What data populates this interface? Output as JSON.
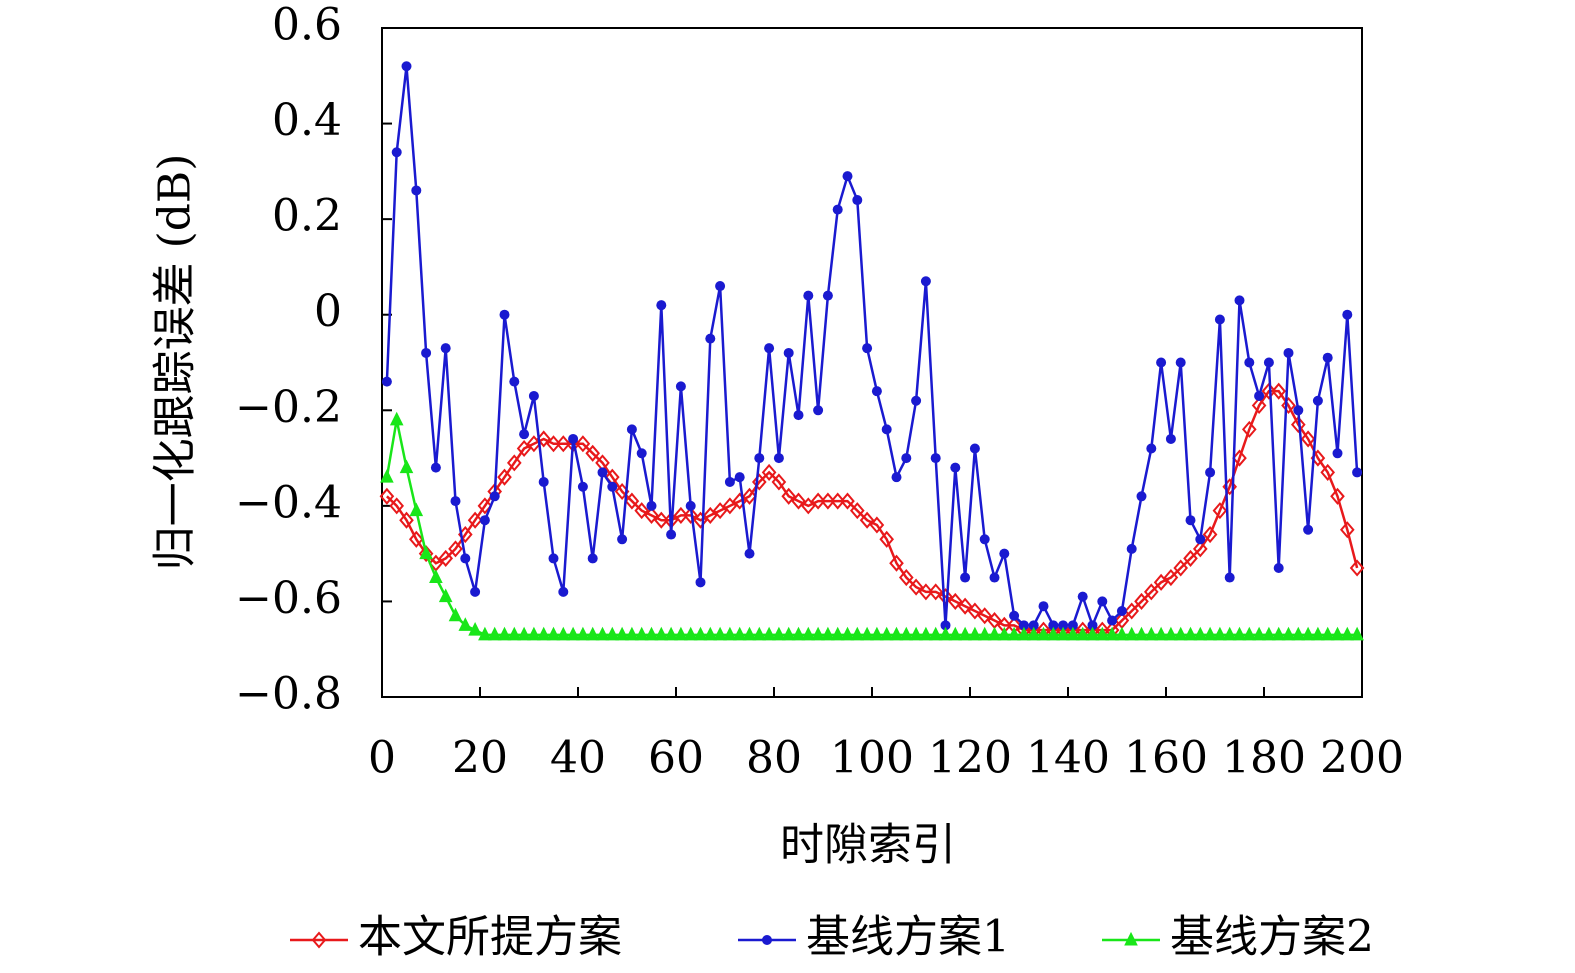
{
  "chart_data": {
    "type": "line",
    "xlabel": "时隙索引",
    "ylabel": "归一化跟踪误差 (dB)",
    "xlim": [
      0,
      200
    ],
    "xticks": [
      0,
      20,
      40,
      60,
      80,
      100,
      120,
      140,
      160,
      180,
      200
    ],
    "ylim": [
      -0.8,
      0.6
    ],
    "yticks": [
      {
        "value": -0.8,
        "label": "−0.8"
      },
      {
        "value": -0.6,
        "label": "−0.6"
      },
      {
        "value": -0.4,
        "label": "−0.4"
      },
      {
        "value": -0.2,
        "label": "−0.2"
      },
      0,
      0.2,
      0.4,
      0.6
    ],
    "legend": "bottom",
    "x": [
      1,
      3,
      5,
      7,
      9,
      11,
      13,
      15,
      17,
      19,
      21,
      23,
      25,
      27,
      29,
      31,
      33,
      35,
      37,
      39,
      41,
      43,
      45,
      47,
      49,
      51,
      53,
      55,
      57,
      59,
      61,
      63,
      65,
      67,
      69,
      71,
      73,
      75,
      77,
      79,
      81,
      83,
      85,
      87,
      89,
      91,
      93,
      95,
      97,
      99,
      101,
      103,
      105,
      107,
      109,
      111,
      113,
      115,
      117,
      119,
      121,
      123,
      125,
      127,
      129,
      131,
      133,
      135,
      137,
      139,
      141,
      143,
      145,
      147,
      149,
      151,
      153,
      155,
      157,
      159,
      161,
      163,
      165,
      167,
      169,
      171,
      173,
      175,
      177,
      179,
      181,
      183,
      185,
      187,
      189,
      191,
      193,
      195,
      197,
      199
    ],
    "series": [
      {
        "name": "本文所提方案",
        "color": "#e8191b",
        "marker": "diamond",
        "values": [
          -0.38,
          -0.4,
          -0.43,
          -0.47,
          -0.5,
          -0.52,
          -0.51,
          -0.49,
          -0.46,
          -0.43,
          -0.4,
          -0.37,
          -0.34,
          -0.31,
          -0.28,
          -0.27,
          -0.26,
          -0.27,
          -0.27,
          -0.27,
          -0.27,
          -0.29,
          -0.31,
          -0.34,
          -0.37,
          -0.39,
          -0.41,
          -0.42,
          -0.43,
          -0.43,
          -0.42,
          -0.42,
          -0.43,
          -0.42,
          -0.41,
          -0.4,
          -0.39,
          -0.38,
          -0.35,
          -0.33,
          -0.35,
          -0.38,
          -0.39,
          -0.4,
          -0.39,
          -0.39,
          -0.39,
          -0.39,
          -0.41,
          -0.43,
          -0.44,
          -0.47,
          -0.52,
          -0.55,
          -0.57,
          -0.58,
          -0.58,
          -0.59,
          -0.6,
          -0.61,
          -0.62,
          -0.63,
          -0.64,
          -0.65,
          -0.65,
          -0.66,
          -0.66,
          -0.66,
          -0.66,
          -0.66,
          -0.66,
          -0.66,
          -0.66,
          -0.66,
          -0.66,
          -0.64,
          -0.62,
          -0.6,
          -0.58,
          -0.56,
          -0.55,
          -0.53,
          -0.51,
          -0.49,
          -0.46,
          -0.41,
          -0.36,
          -0.3,
          -0.24,
          -0.19,
          -0.16,
          -0.16,
          -0.19,
          -0.23,
          -0.26,
          -0.3,
          -0.33,
          -0.38,
          -0.45,
          -0.53
        ]
      },
      {
        "name": "基线方案1",
        "color": "#1a1ad0",
        "marker": "circle",
        "values": [
          -0.14,
          0.34,
          0.52,
          0.26,
          -0.08,
          -0.32,
          -0.07,
          -0.39,
          -0.51,
          -0.58,
          -0.43,
          -0.38,
          0.0,
          -0.14,
          -0.25,
          -0.17,
          -0.35,
          -0.51,
          -0.58,
          -0.26,
          -0.36,
          -0.51,
          -0.33,
          -0.36,
          -0.47,
          -0.24,
          -0.29,
          -0.4,
          0.02,
          -0.46,
          -0.15,
          -0.4,
          -0.56,
          -0.05,
          0.06,
          -0.35,
          -0.34,
          -0.5,
          -0.3,
          -0.07,
          -0.3,
          -0.08,
          -0.21,
          0.04,
          -0.2,
          0.04,
          0.22,
          0.29,
          0.24,
          -0.07,
          -0.16,
          -0.24,
          -0.34,
          -0.3,
          -0.18,
          0.07,
          -0.3,
          -0.65,
          -0.32,
          -0.55,
          -0.28,
          -0.47,
          -0.55,
          -0.5,
          -0.63,
          -0.65,
          -0.65,
          -0.61,
          -0.65,
          -0.65,
          -0.65,
          -0.59,
          -0.65,
          -0.6,
          -0.64,
          -0.62,
          -0.49,
          -0.38,
          -0.28,
          -0.1,
          -0.26,
          -0.1,
          -0.43,
          -0.47,
          -0.33,
          -0.01,
          -0.55,
          0.03,
          -0.1,
          -0.17,
          -0.1,
          -0.53,
          -0.08,
          -0.2,
          -0.45,
          -0.18,
          -0.09,
          -0.29,
          0.0,
          -0.33
        ]
      },
      {
        "name": "基线方案2",
        "color": "#19e619",
        "marker": "triangle",
        "values": [
          -0.34,
          -0.22,
          -0.32,
          -0.41,
          -0.5,
          -0.55,
          -0.59,
          -0.63,
          -0.65,
          -0.66,
          -0.67,
          -0.67,
          -0.67,
          -0.67,
          -0.67,
          -0.67,
          -0.67,
          -0.67,
          -0.67,
          -0.67,
          -0.67,
          -0.67,
          -0.67,
          -0.67,
          -0.67,
          -0.67,
          -0.67,
          -0.67,
          -0.67,
          -0.67,
          -0.67,
          -0.67,
          -0.67,
          -0.67,
          -0.67,
          -0.67,
          -0.67,
          -0.67,
          -0.67,
          -0.67,
          -0.67,
          -0.67,
          -0.67,
          -0.67,
          -0.67,
          -0.67,
          -0.67,
          -0.67,
          -0.67,
          -0.67,
          -0.67,
          -0.67,
          -0.67,
          -0.67,
          -0.67,
          -0.67,
          -0.67,
          -0.67,
          -0.67,
          -0.67,
          -0.67,
          -0.67,
          -0.67,
          -0.67,
          -0.67,
          -0.67,
          -0.67,
          -0.67,
          -0.67,
          -0.67,
          -0.67,
          -0.67,
          -0.67,
          -0.67,
          -0.67,
          -0.67,
          -0.67,
          -0.67,
          -0.67,
          -0.67,
          -0.67,
          -0.67,
          -0.67,
          -0.67,
          -0.67,
          -0.67,
          -0.67,
          -0.67,
          -0.67,
          -0.67,
          -0.67,
          -0.67,
          -0.67,
          -0.67,
          -0.67,
          -0.67,
          -0.67,
          -0.67,
          -0.67,
          -0.67
        ]
      }
    ]
  }
}
